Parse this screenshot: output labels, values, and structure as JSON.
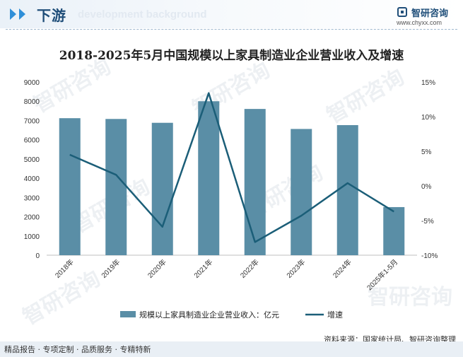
{
  "header": {
    "section_title": "下游",
    "section_subtitle": "development background",
    "brand_name": "智研咨询",
    "brand_site": "www.chyxx.com"
  },
  "chart_data": {
    "type": "bar",
    "title": "2018-2025年5月中国规模以上家具制造业企业营业收入及增速",
    "categories": [
      "2018年",
      "2019年",
      "2020年",
      "2021年",
      "2022年",
      "2023年",
      "2024年",
      "2025年1-5月"
    ],
    "series": [
      {
        "name": "规模以上家具制造业企业营业收入：亿元",
        "type": "bar",
        "axis": "left",
        "color": "#5a8ea6",
        "values": [
          7120,
          7080,
          6880,
          8000,
          7600,
          6560,
          6760,
          2500
        ]
      },
      {
        "name": "增速",
        "type": "line",
        "axis": "right",
        "color": "#1b5e78",
        "values": [
          4.5,
          1.6,
          -5.9,
          13.4,
          -8.1,
          -4.3,
          0.4,
          -3.7
        ]
      }
    ],
    "y_left": {
      "min": 0,
      "max": 9000,
      "step": 1000,
      "ticks": [
        "0",
        "1000",
        "2000",
        "3000",
        "4000",
        "5000",
        "6000",
        "7000",
        "8000",
        "9000"
      ]
    },
    "y_right": {
      "min": -10,
      "max": 15,
      "step": 5,
      "ticks": [
        "-10%",
        "-5%",
        "0%",
        "5%",
        "10%",
        "15%"
      ]
    },
    "legend_position": "bottom",
    "grid": false
  },
  "watermark": "智研咨询",
  "source": "资料来源：国家统计局、智研咨询整理",
  "footer": "精品报告 · 专项定制 · 品质服务 · 专精特新"
}
